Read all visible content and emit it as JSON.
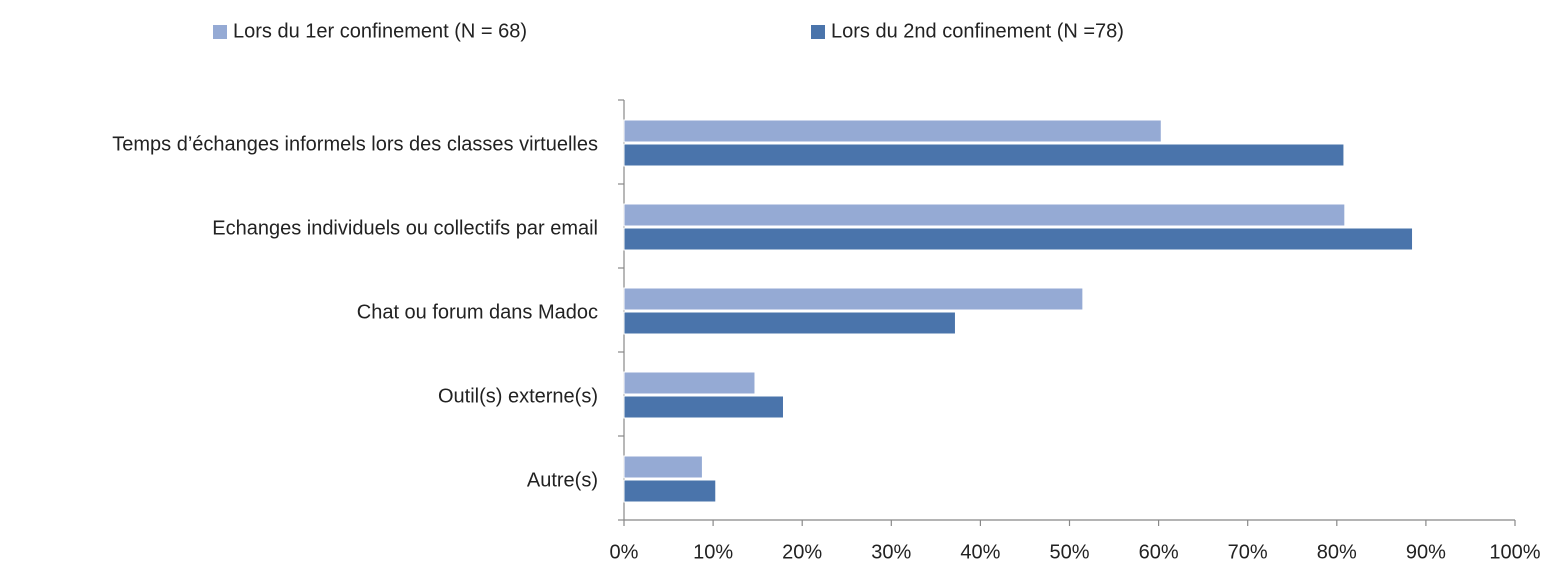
{
  "chart_data": {
    "type": "hbar",
    "categories": [
      "Temps d’échanges informels lors des classes virtuelles",
      "Echanges individuels ou collectifs par email",
      "Chat ou forum dans Madoc",
      "Outil(s) externe(s)",
      "Autre(s)"
    ],
    "series": [
      {
        "name": "Lors du 1er confinement (N = 68)",
        "color": "#95aad4",
        "values": [
          60.3,
          80.9,
          51.5,
          14.7,
          8.8
        ]
      },
      {
        "name": "Lors du 2nd confinement (N =78)",
        "color": "#4a74ab",
        "values": [
          80.8,
          88.5,
          37.2,
          17.9,
          10.3
        ]
      }
    ],
    "xlim": [
      0,
      100
    ],
    "xticks": [
      {
        "value": 0,
        "label": "0%"
      },
      {
        "value": 10,
        "label": "10%"
      },
      {
        "value": 20,
        "label": "20%"
      },
      {
        "value": 30,
        "label": "30%"
      },
      {
        "value": 40,
        "label": "40%"
      },
      {
        "value": 50,
        "label": "50%"
      },
      {
        "value": 60,
        "label": "60%"
      },
      {
        "value": 70,
        "label": "70%"
      },
      {
        "value": 80,
        "label": "80%"
      },
      {
        "value": 90,
        "label": "90%"
      },
      {
        "value": 100,
        "label": "100%"
      }
    ],
    "legend": "top",
    "grid": false
  }
}
